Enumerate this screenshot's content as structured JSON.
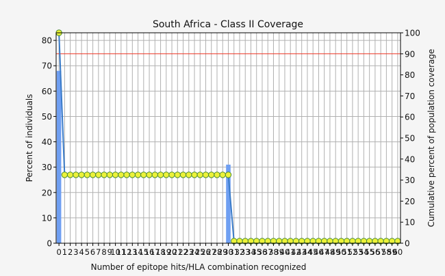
{
  "chart_data": {
    "type": "bar",
    "title": "South Africa - Class II Coverage",
    "xlabel": "Number of epitope hits/HLA combination recognized",
    "ylabel": "Percent of individuals",
    "y2label": "Cumulative percent of population coverage",
    "x": [
      0,
      1,
      2,
      3,
      4,
      5,
      6,
      7,
      8,
      9,
      10,
      11,
      12,
      13,
      14,
      15,
      16,
      17,
      18,
      19,
      20,
      21,
      22,
      23,
      24,
      25,
      26,
      27,
      28,
      29,
      30,
      31,
      32,
      33,
      34,
      35,
      36,
      37,
      38,
      39,
      40,
      41,
      42,
      43,
      44,
      45,
      46,
      47,
      48,
      49,
      50,
      51,
      52,
      53,
      54,
      55,
      56,
      57,
      58,
      59,
      60
    ],
    "xlim": [
      -0.5,
      60.5
    ],
    "ylim": [
      0,
      83
    ],
    "y2lim": [
      0,
      100
    ],
    "yticks": [
      0,
      10,
      20,
      30,
      40,
      50,
      60,
      70,
      80
    ],
    "y2ticks": [
      0,
      10,
      20,
      30,
      40,
      50,
      60,
      70,
      80,
      90,
      100
    ],
    "grid": true,
    "reference_line_y2": 90,
    "colors": {
      "bars": "#6f9ff2",
      "line": "#3a7bc8",
      "markers": "#ecf23a",
      "marker_edge": "#4a8a30",
      "reference": "#ee3322",
      "grid": "#b0b0b0"
    },
    "series": [
      {
        "type": "bar",
        "axis": "left",
        "values": [
          68,
          0,
          0,
          0,
          0,
          0,
          0,
          0,
          0,
          0,
          0,
          0,
          0,
          0,
          0,
          0,
          0,
          0,
          0,
          0,
          0,
          0,
          0,
          0,
          0,
          0,
          0,
          0,
          0,
          0,
          31,
          0,
          0,
          0,
          0,
          0,
          0,
          0,
          0,
          0,
          0,
          0,
          0,
          0,
          0,
          0,
          0,
          0,
          0,
          0,
          0,
          0,
          0,
          0,
          0,
          0,
          0,
          0,
          0,
          0,
          0
        ]
      },
      {
        "type": "line",
        "axis": "right",
        "values": [
          100,
          32.5,
          32.5,
          32.5,
          32.5,
          32.5,
          32.5,
          32.5,
          32.5,
          32.5,
          32.5,
          32.5,
          32.5,
          32.5,
          32.5,
          32.5,
          32.5,
          32.5,
          32.5,
          32.5,
          32.5,
          32.5,
          32.5,
          32.5,
          32.5,
          32.5,
          32.5,
          32.5,
          32.5,
          32.5,
          32.5,
          1,
          1,
          1,
          1,
          1,
          1,
          1,
          1,
          1,
          1,
          1,
          1,
          1,
          1,
          1,
          1,
          1,
          1,
          1,
          1,
          1,
          1,
          1,
          1,
          1,
          1,
          1,
          1,
          1,
          1
        ]
      }
    ]
  }
}
